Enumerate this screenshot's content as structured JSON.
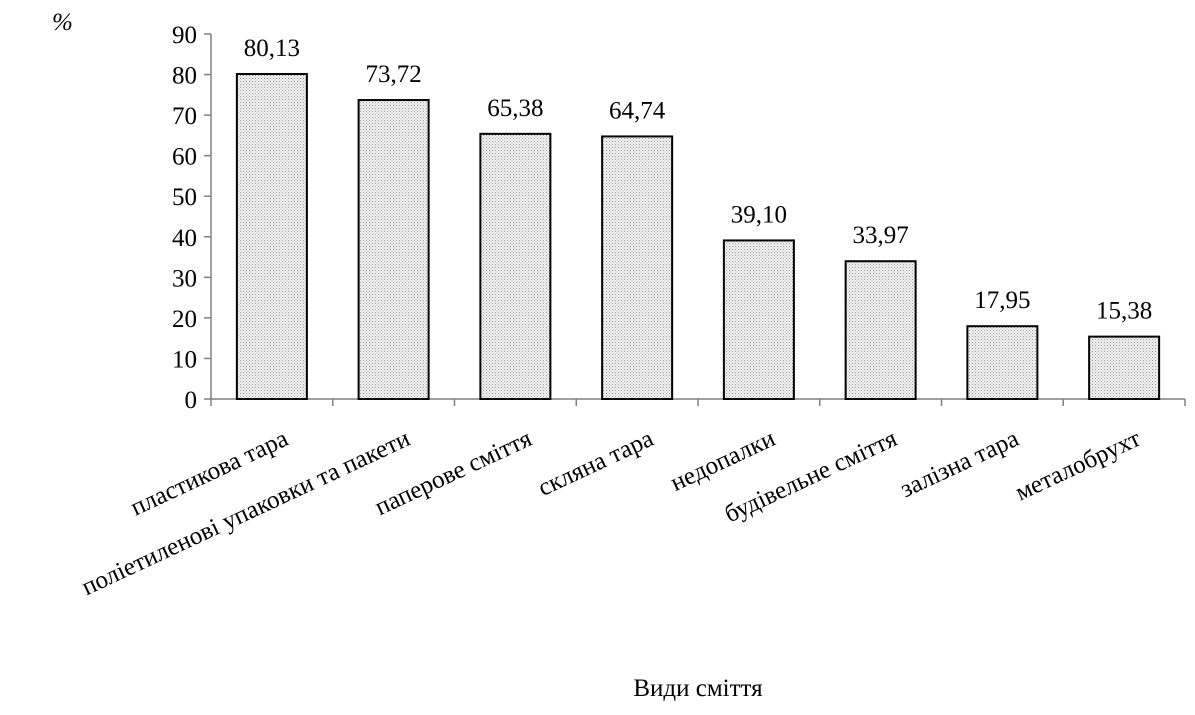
{
  "chart_data": {
    "type": "bar",
    "title": "",
    "xlabel": "Види сміття",
    "ylabel": "%",
    "ylim": [
      0,
      90
    ],
    "yticks": [
      0,
      10,
      20,
      30,
      40,
      50,
      60,
      70,
      80,
      90
    ],
    "grid": false,
    "categories": [
      "пластикова тара",
      "поліетиленові упаковки та пакети",
      "паперове сміття",
      "скляна тара",
      "недопалки",
      "будівельне сміття",
      "залізна тара",
      "металобрухт"
    ],
    "values": [
      80.13,
      73.72,
      65.38,
      64.74,
      39.1,
      33.97,
      17.95,
      15.38
    ],
    "value_labels": [
      "80,13",
      "73,72",
      "65,38",
      "64,74",
      "39,10",
      "33,97",
      "17,95",
      "15,38"
    ],
    "bar_fill": "dotted light gray",
    "colors": {
      "bar_fill": "#d9d9d9",
      "bar_stroke": "#000000",
      "axis": "#808080"
    }
  }
}
